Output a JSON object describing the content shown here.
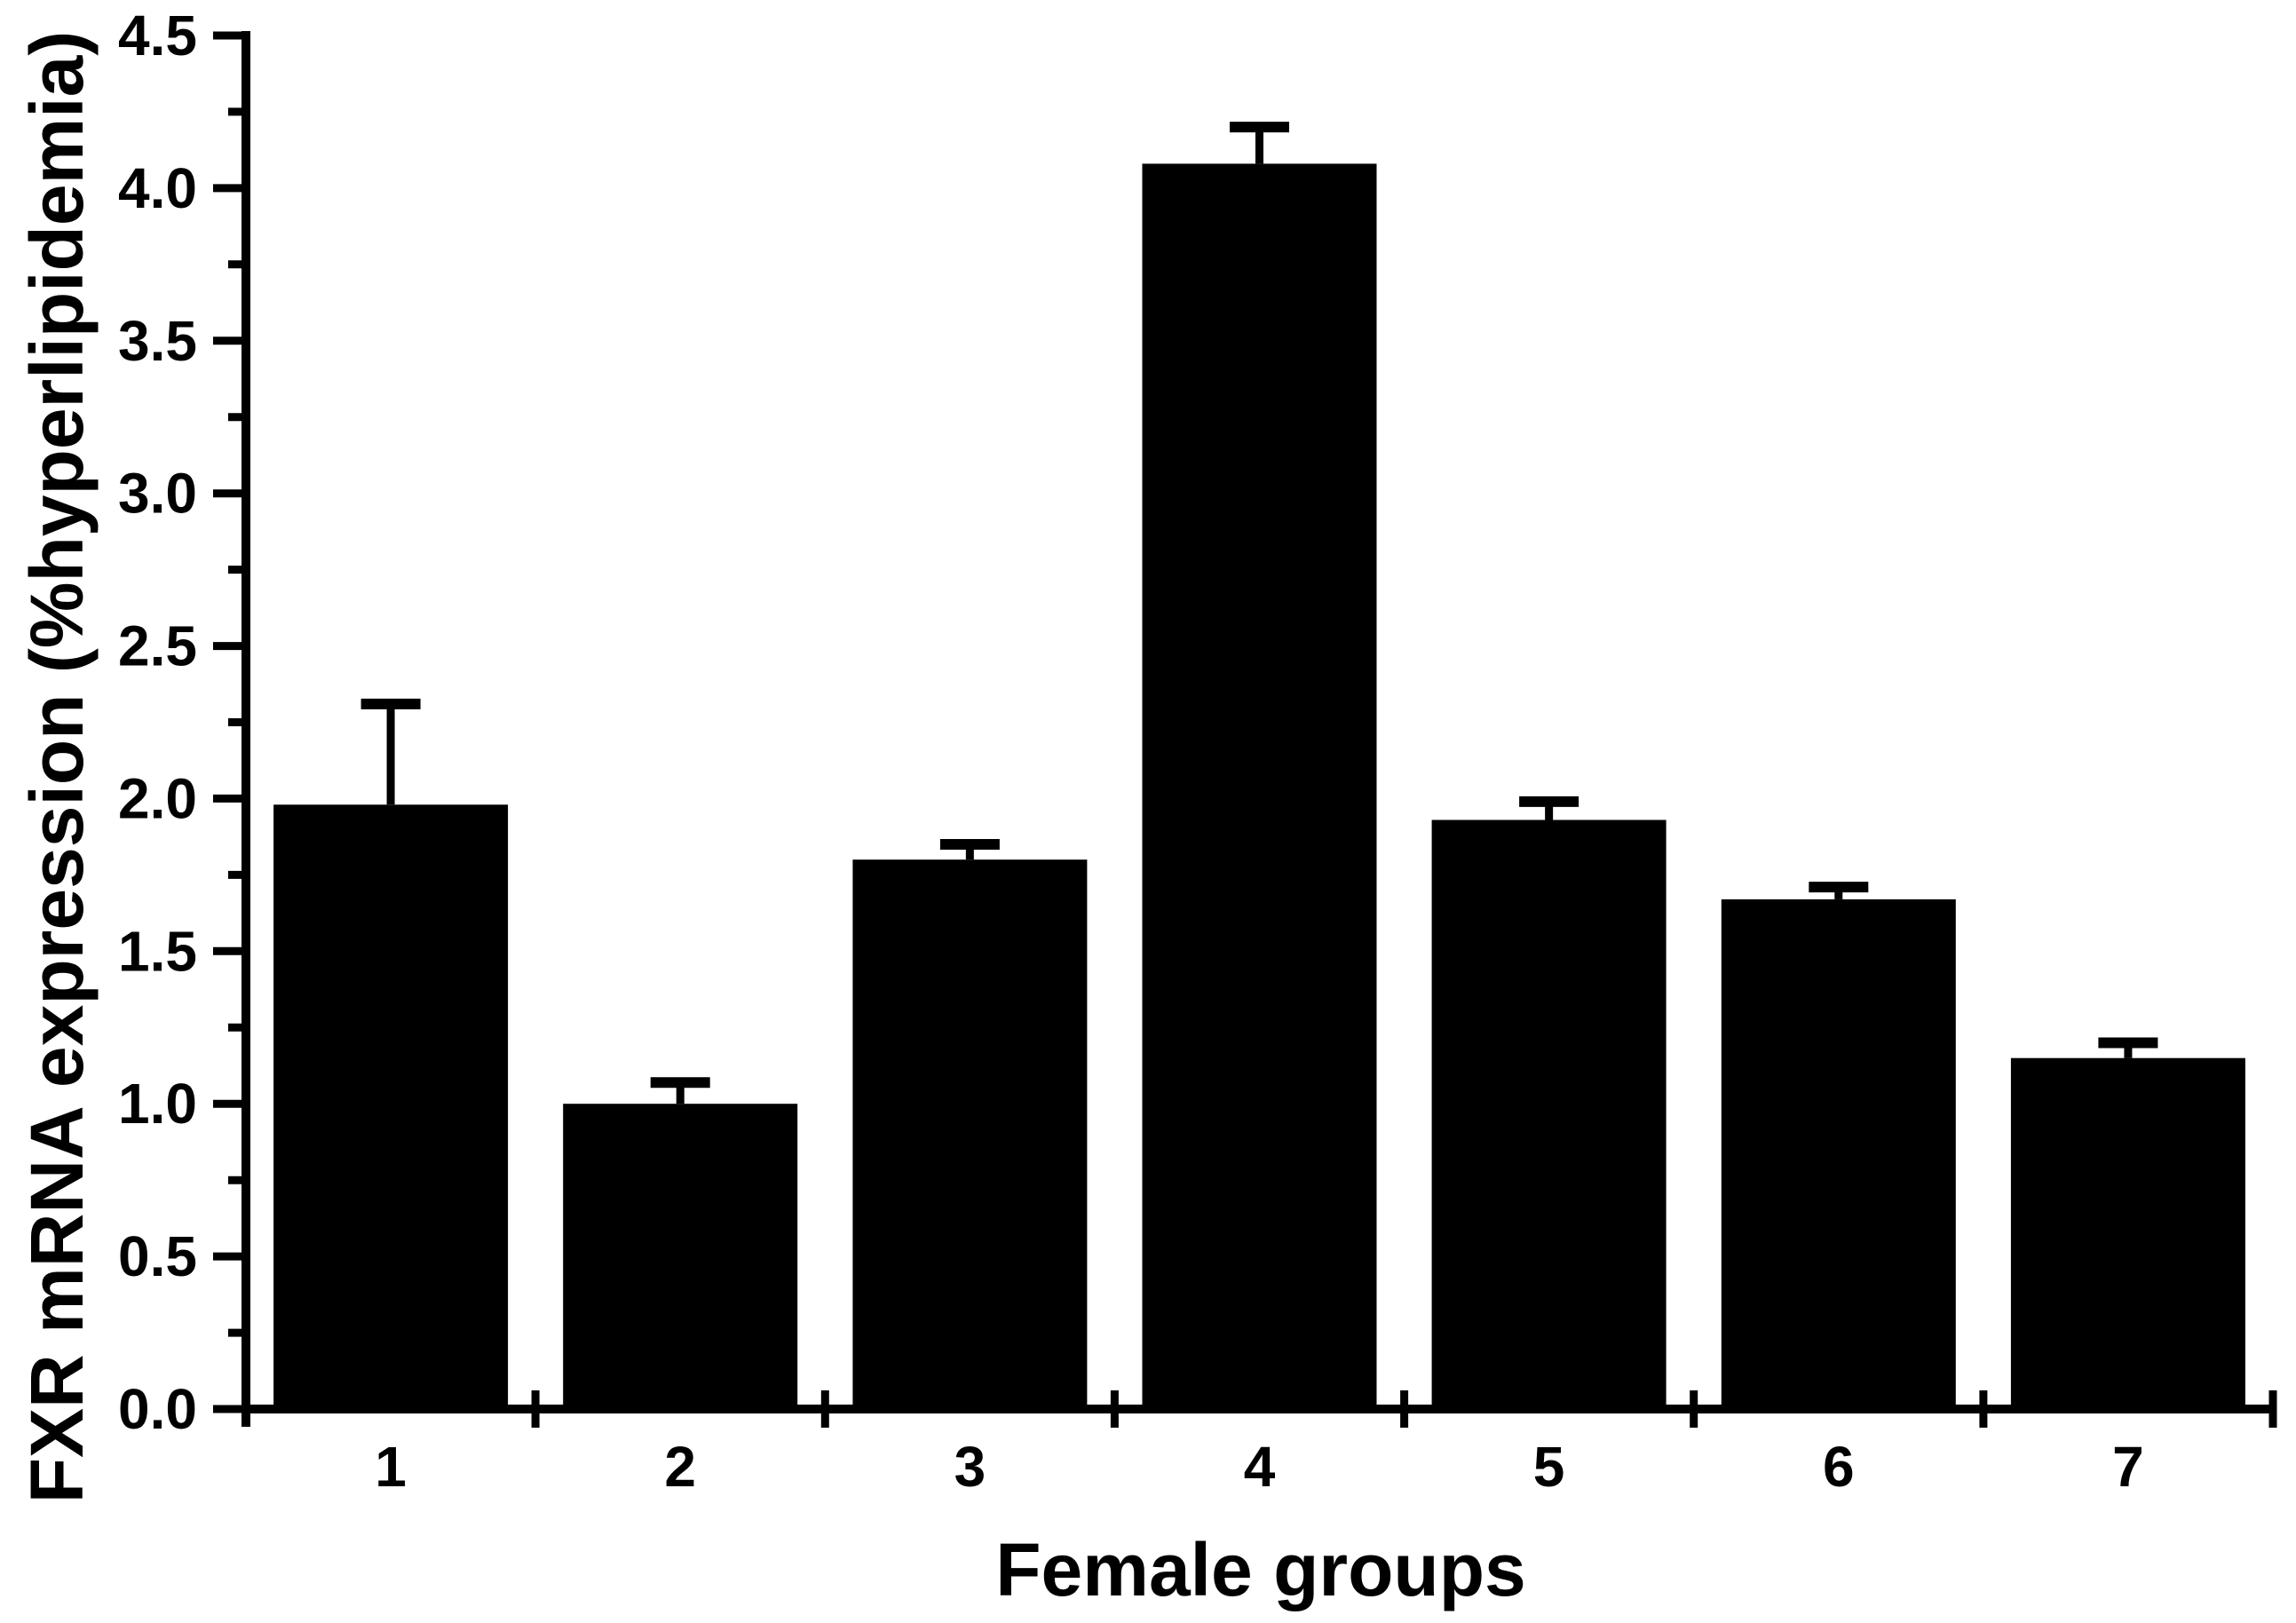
{
  "chart_data": {
    "type": "bar",
    "title": "",
    "xlabel": "Female groups",
    "ylabel": "FXR mRNA expression (%hyperlipidemia)",
    "categories": [
      "1",
      "2",
      "3",
      "4",
      "5",
      "6",
      "7"
    ],
    "series": [
      {
        "name": "FXR mRNA expression",
        "values": [
          1.98,
          1.0,
          1.8,
          4.08,
          1.93,
          1.67,
          1.15
        ],
        "errors_plus": [
          0.33,
          0.07,
          0.05,
          0.12,
          0.06,
          0.04,
          0.05
        ],
        "error_cap_tops": [
          2.31,
          1.07,
          1.85,
          4.2,
          1.99,
          1.71,
          1.2
        ]
      }
    ],
    "ylim": [
      0.0,
      4.5
    ],
    "ytick_major_step": 0.5,
    "ytick_minor_step": 0.25,
    "ytick_labels": [
      "0.0",
      "0.5",
      "1.0",
      "1.5",
      "2.0",
      "2.5",
      "3.0",
      "3.5",
      "4.0",
      "4.5"
    ],
    "grid": false,
    "legend": null,
    "bar_color": "#000000",
    "axis_color": "#000000",
    "background_color": "#ffffff",
    "error_bar_color": "#000000",
    "x_ticks_between_categories": true
  }
}
